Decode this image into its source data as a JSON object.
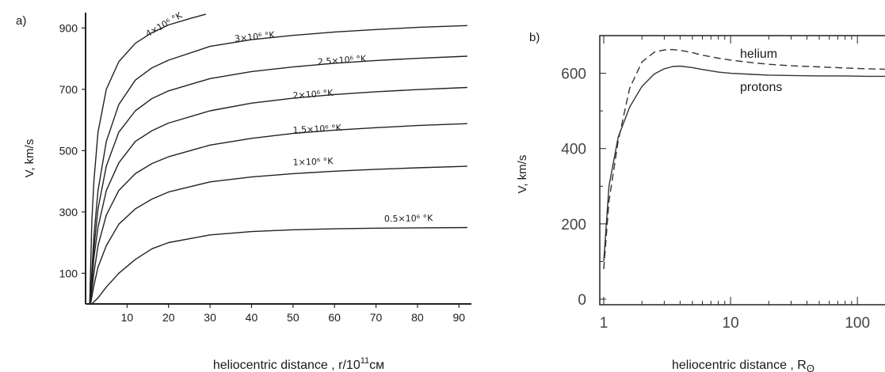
{
  "chart_data": [
    {
      "panel_label": "a)",
      "type": "line",
      "xlabel": "heliocentric distance , r/10",
      "xlabel_exp": "11",
      "xlabel_unit": "см",
      "ylabel": "V, km/s",
      "xlim": [
        0,
        93
      ],
      "ylim": [
        0,
        950
      ],
      "xticks": [
        10,
        20,
        30,
        40,
        50,
        60,
        70,
        80,
        90
      ],
      "yticks": [
        100,
        300,
        500,
        700,
        900
      ],
      "series": [
        {
          "name": "0.5×10⁶ °K",
          "x": [
            1.5,
            3,
            5,
            8,
            12,
            16,
            20,
            30,
            40,
            50,
            60,
            70,
            80,
            92
          ],
          "y": [
            0,
            20,
            55,
            100,
            145,
            180,
            200,
            225,
            236,
            242,
            245,
            247,
            248,
            249
          ]
        },
        {
          "name": "1×10⁶ °K",
          "x": [
            1.2,
            2,
            3,
            5,
            8,
            12,
            16,
            20,
            30,
            40,
            50,
            60,
            70,
            80,
            92
          ],
          "y": [
            0,
            60,
            120,
            190,
            260,
            310,
            342,
            365,
            398,
            414,
            425,
            433,
            439,
            444,
            449
          ]
        },
        {
          "name": "1.5×10⁶ °K",
          "x": [
            1.1,
            2,
            3,
            5,
            8,
            12,
            16,
            20,
            30,
            40,
            50,
            60,
            70,
            80,
            92
          ],
          "y": [
            0,
            100,
            190,
            290,
            370,
            425,
            458,
            480,
            518,
            540,
            556,
            567,
            575,
            582,
            588
          ]
        },
        {
          "name": "2×10⁶ °K",
          "x": [
            1.1,
            2,
            3,
            5,
            8,
            12,
            16,
            20,
            30,
            40,
            50,
            60,
            70,
            80,
            92
          ],
          "y": [
            0,
            150,
            250,
            370,
            460,
            530,
            565,
            590,
            630,
            655,
            671,
            683,
            692,
            699,
            706
          ]
        },
        {
          "name": "2.5×10⁶ °K",
          "x": [
            1.05,
            2,
            3,
            5,
            8,
            12,
            16,
            20,
            30,
            40,
            50,
            60,
            70,
            80,
            92
          ],
          "y": [
            0,
            180,
            310,
            450,
            560,
            630,
            670,
            695,
            735,
            758,
            773,
            785,
            794,
            801,
            808
          ]
        },
        {
          "name": "3×10⁶ °K",
          "x": [
            1.05,
            2,
            3,
            5,
            8,
            12,
            16,
            20,
            30,
            40,
            50,
            60,
            70,
            80,
            92
          ],
          "y": [
            0,
            220,
            370,
            530,
            650,
            730,
            770,
            795,
            840,
            862,
            876,
            887,
            895,
            902,
            908
          ]
        },
        {
          "name": "4×10⁶ °K",
          "x": [
            1.0,
            1.5,
            2,
            3,
            5,
            8,
            12,
            16,
            20,
            25,
            29
          ],
          "y": [
            0,
            270,
            400,
            560,
            700,
            790,
            850,
            885,
            910,
            930,
            945
          ]
        }
      ]
    },
    {
      "panel_label": "b)",
      "type": "line",
      "xlabel": "heliocentric distance , R",
      "xlabel_sub": "ʘ",
      "ylabel": "V, km/s",
      "xscale": "log",
      "xlim": [
        1,
        220
      ],
      "ylim": [
        0,
        700
      ],
      "xticks": [
        1,
        10,
        100
      ],
      "yticks": [
        0,
        200,
        400,
        600
      ],
      "series": [
        {
          "name": "protons",
          "style": "solid",
          "x": [
            1.0,
            1.1,
            1.3,
            1.6,
            2.0,
            2.5,
            3.0,
            3.5,
            4.0,
            5.0,
            6.0,
            8.0,
            10,
            15,
            20,
            30,
            50,
            80,
            120,
            200
          ],
          "y": [
            100,
            300,
            430,
            510,
            565,
            598,
            612,
            618,
            619,
            615,
            610,
            603,
            600,
            597,
            595,
            594,
            593,
            593,
            592,
            592
          ]
        },
        {
          "name": "helium",
          "style": "dashed",
          "x": [
            1.0,
            1.1,
            1.3,
            1.6,
            2.0,
            2.5,
            3.0,
            3.5,
            4.0,
            5.0,
            6.0,
            8.0,
            10,
            15,
            20,
            30,
            50,
            80,
            120,
            200
          ],
          "y": [
            80,
            260,
            420,
            560,
            630,
            656,
            662,
            663,
            661,
            655,
            648,
            640,
            635,
            628,
            624,
            620,
            617,
            614,
            612,
            610
          ]
        }
      ]
    }
  ]
}
